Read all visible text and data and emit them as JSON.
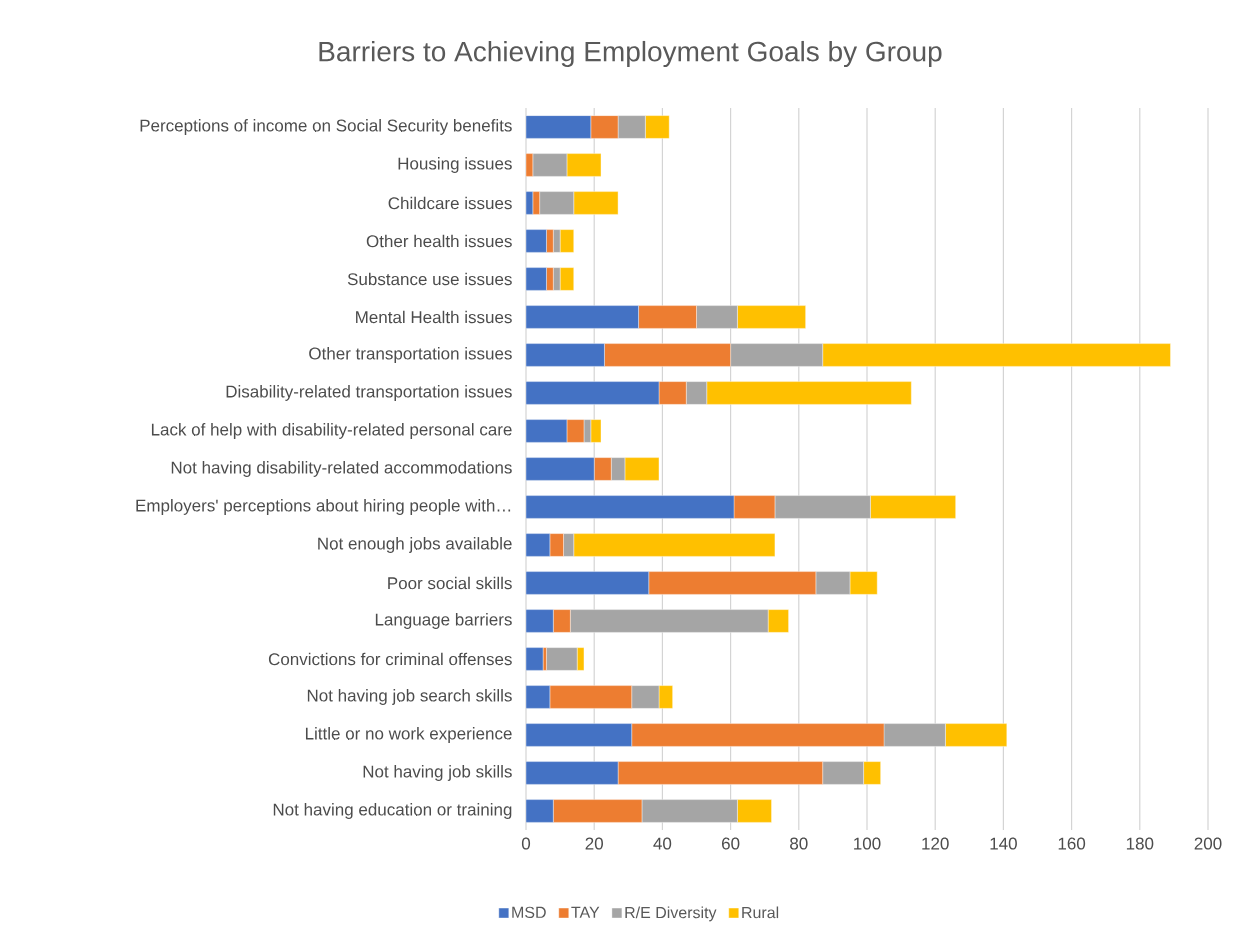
{
  "chart_data": {
    "type": "bar",
    "orientation": "horizontal",
    "stacked": true,
    "title": "Barriers to Achieving Employment Goals by Group",
    "categories": [
      "Perceptions of income on Social Security benefits",
      "Housing issues",
      "Childcare issues",
      "Other health issues",
      "Substance use issues",
      "Mental Health issues",
      "Other transportation issues",
      "Disability-related transportation issues",
      "Lack of help with disability-related personal care",
      "Not having disability-related accommodations",
      "Employers' perceptions about hiring people with…",
      "Not enough jobs available",
      "Poor social skills",
      "Language barriers",
      "Convictions for criminal offenses",
      "Not having job search skills",
      "Little or no work experience",
      "Not having job skills",
      "Not having education or training"
    ],
    "series": [
      {
        "name": "MSD",
        "color": "#4472c4",
        "values": [
          19,
          0,
          2,
          6,
          6,
          33,
          23,
          39,
          12,
          20,
          61,
          7,
          36,
          8,
          5,
          7,
          31,
          27,
          8
        ]
      },
      {
        "name": "TAY",
        "color": "#ed7d31",
        "values": [
          8,
          2,
          2,
          2,
          2,
          17,
          37,
          8,
          5,
          5,
          12,
          4,
          49,
          5,
          1,
          24,
          74,
          60,
          26
        ]
      },
      {
        "name": "R/E Diversity",
        "color": "#a5a5a5",
        "values": [
          8,
          10,
          10,
          2,
          2,
          12,
          27,
          6,
          2,
          4,
          28,
          3,
          10,
          58,
          9,
          8,
          18,
          12,
          28
        ]
      },
      {
        "name": "Rural",
        "color": "#ffc000",
        "values": [
          7,
          10,
          13,
          4,
          4,
          20,
          102,
          60,
          3,
          10,
          25,
          59,
          8,
          6,
          2,
          4,
          18,
          5,
          10
        ]
      }
    ],
    "xlim": [
      0,
      200
    ],
    "xticks": [
      0,
      20,
      40,
      60,
      80,
      100,
      120,
      140,
      160,
      180,
      200
    ],
    "grid": "x",
    "legend": "bottom"
  }
}
